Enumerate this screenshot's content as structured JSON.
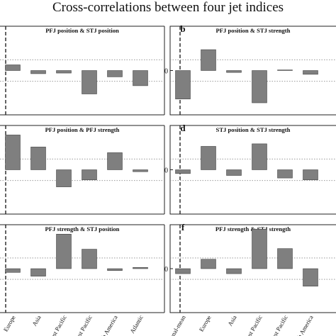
{
  "figure_title": "Cross-correlations between four jet indices",
  "colors": {
    "bar": "#7f7f7f",
    "bar_edge": "#333333",
    "dotted": "#8a8a8a",
    "axis": "#222222"
  },
  "y_tick_label": "0",
  "chart_data": [
    {
      "type": "bar",
      "panel_letter": "",
      "title": "PFJ position & STJ position",
      "categories": [
        "Zonal-mean",
        "Europe",
        "Asia",
        "West Pacific",
        "East Pacific",
        "North America",
        "Atlantic"
      ],
      "values": [
        null,
        0.09,
        -0.05,
        -0.04,
        -0.37,
        -0.1,
        -0.24
      ],
      "ylim": [
        -0.7,
        0.7
      ],
      "reference_lines": [
        -0.17,
        0.17
      ],
      "show_x_labels": false
    },
    {
      "type": "bar",
      "panel_letter": "b",
      "title": "PFJ position & STJ strength",
      "categories": [
        "Zonal-mean",
        "Europe",
        "Asia",
        "West Pacific",
        "East Pacific",
        "North America"
      ],
      "values": [
        -0.45,
        0.33,
        -0.03,
        -0.51,
        0.01,
        -0.06
      ],
      "ylim": [
        -0.7,
        0.7
      ],
      "reference_lines": [
        -0.17,
        0.17
      ],
      "show_x_labels": false
    },
    {
      "type": "bar",
      "panel_letter": "",
      "title": "PFJ position & PFJ strength",
      "categories": [
        "Zonal-mean",
        "Europe",
        "Asia",
        "West Pacific",
        "East Pacific",
        "North America",
        "Atlantic"
      ],
      "values": [
        null,
        0.55,
        0.36,
        -0.27,
        -0.16,
        0.27,
        -0.03
      ],
      "ylim": [
        -0.7,
        0.7
      ],
      "reference_lines": [
        -0.17,
        0.17
      ],
      "show_x_labels": false
    },
    {
      "type": "bar",
      "panel_letter": "d",
      "title": "STJ position & STJ strength",
      "categories": [
        "Zonal-mean",
        "Europe",
        "Asia",
        "West Pacific",
        "East Pacific",
        "North America"
      ],
      "values": [
        -0.06,
        0.37,
        -0.09,
        0.41,
        -0.13,
        -0.16
      ],
      "ylim": [
        -0.7,
        0.7
      ],
      "reference_lines": [
        -0.17,
        0.17
      ],
      "show_x_labels": false
    },
    {
      "type": "bar",
      "panel_letter": "",
      "title": "PFJ strength & STJ position",
      "categories": [
        "Zonal-mean",
        "Europe",
        "Asia",
        "West Pacific",
        "East Pacific",
        "North America",
        "Atlantic"
      ],
      "values": [
        null,
        -0.06,
        -0.12,
        0.55,
        0.31,
        -0.03,
        0.02
      ],
      "ylim": [
        -0.7,
        0.7
      ],
      "reference_lines": [
        -0.17,
        0.17
      ],
      "show_x_labels": true
    },
    {
      "type": "bar",
      "panel_letter": "f",
      "title": "PFJ strength & STJ strength",
      "categories": [
        "Zonal-mean",
        "Europe",
        "Asia",
        "West Pacific",
        "East Pacific",
        "North America"
      ],
      "values": [
        -0.08,
        0.15,
        -0.08,
        0.63,
        0.32,
        -0.28
      ],
      "ylim": [
        -0.7,
        0.7
      ],
      "reference_lines": [
        -0.17,
        0.17
      ],
      "show_x_labels": true
    }
  ]
}
